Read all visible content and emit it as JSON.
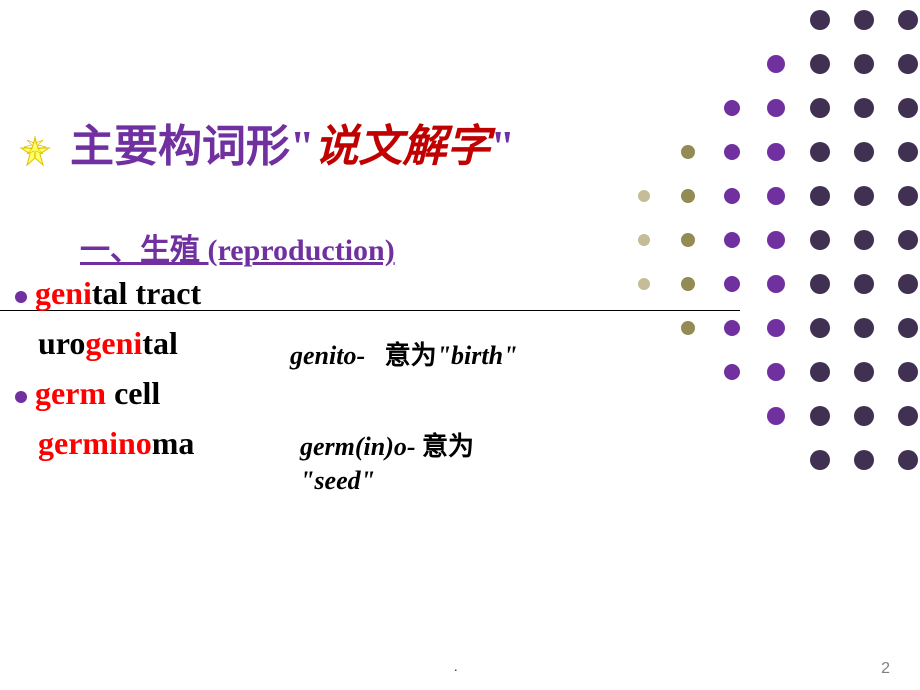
{
  "title": {
    "part1": "主要构词形",
    "quote_open": "\"",
    "part2": "说文解字",
    "quote_close": "\""
  },
  "subtitle": "一、生殖 (reproduction)",
  "items": [
    {
      "red": "geni",
      "black": "tal tract"
    },
    {
      "pre": "uro",
      "red": "geni",
      "black": "tal"
    },
    {
      "red": "germ",
      "black": " cell"
    },
    {
      "red": "germino",
      "black": "ma"
    }
  ],
  "notes": {
    "n1_prefix": "genito-",
    "n1_cn": "意为",
    "n1_mean": "\"birth\"",
    "n2_prefix": "germ(in)o-",
    "n2_cn": "意为",
    "n2_mean": "\"seed\""
  },
  "page_number": "2",
  "footer_mark": ".",
  "colors": {
    "purple": "#7030a0",
    "dark_purple": "#403152",
    "teal": "#4f6228",
    "olive": "#948a54",
    "light": "#c4bd97"
  },
  "dot_grid": {
    "rows": 11,
    "cols": 7,
    "spacing": 44,
    "radius_map": [
      [
        0,
        0,
        0,
        0,
        20,
        20,
        20
      ],
      [
        0,
        0,
        0,
        18,
        20,
        20,
        20
      ],
      [
        0,
        0,
        16,
        18,
        20,
        20,
        20
      ],
      [
        0,
        14,
        16,
        18,
        20,
        20,
        20
      ],
      [
        12,
        14,
        16,
        18,
        20,
        20,
        20
      ],
      [
        12,
        14,
        16,
        18,
        20,
        20,
        20
      ],
      [
        12,
        14,
        16,
        18,
        20,
        20,
        20
      ],
      [
        0,
        14,
        16,
        18,
        20,
        20,
        20
      ],
      [
        0,
        0,
        16,
        18,
        20,
        20,
        20
      ],
      [
        0,
        0,
        0,
        18,
        20,
        20,
        20
      ],
      [
        0,
        0,
        0,
        0,
        20,
        20,
        20
      ]
    ],
    "color_cols": [
      "#c4bd97",
      "#948a54",
      "#7030a0",
      "#7030a0",
      "#403152",
      "#403152",
      "#403152"
    ]
  }
}
